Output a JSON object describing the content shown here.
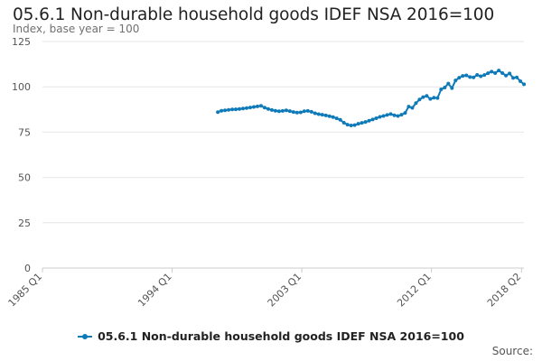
{
  "chart_data": {
    "type": "line",
    "title": "05.6.1 Non-durable household goods IDEF NSA 2016=100",
    "subtitle": "Index, base year = 100",
    "x_tick_labels": [
      "1985 Q1",
      "1994 Q1",
      "2003 Q1",
      "2012 Q1",
      "2018 Q2"
    ],
    "y_tick_labels": [
      "0",
      "25",
      "50",
      "75",
      "100",
      "125"
    ],
    "ylim": [
      0,
      125
    ],
    "x_start_year": 1985,
    "x_end_year": 2018.4167,
    "grid": true,
    "legend_position": "bottom",
    "series": [
      {
        "name": "05.6.1 Non-durable household goods IDEF NSA 2016=100",
        "color": "#0f7ab8",
        "points": [
          [
            1997.17,
            86.0
          ],
          [
            1997.42,
            86.8
          ],
          [
            1997.67,
            87.0
          ],
          [
            1997.92,
            87.3
          ],
          [
            1998.17,
            87.5
          ],
          [
            1998.42,
            87.6
          ],
          [
            1998.67,
            87.8
          ],
          [
            1998.92,
            88.0
          ],
          [
            1999.17,
            88.3
          ],
          [
            1999.42,
            88.6
          ],
          [
            1999.67,
            88.9
          ],
          [
            1999.92,
            89.2
          ],
          [
            2000.17,
            89.5
          ],
          [
            2000.42,
            88.5
          ],
          [
            2000.67,
            87.8
          ],
          [
            2000.92,
            87.2
          ],
          [
            2001.17,
            86.8
          ],
          [
            2001.42,
            86.5
          ],
          [
            2001.67,
            86.7
          ],
          [
            2001.92,
            87.0
          ],
          [
            2002.17,
            86.6
          ],
          [
            2002.42,
            86.1
          ],
          [
            2002.67,
            85.8
          ],
          [
            2002.92,
            85.9
          ],
          [
            2003.17,
            86.5
          ],
          [
            2003.42,
            86.7
          ],
          [
            2003.67,
            86.2
          ],
          [
            2003.92,
            85.4
          ],
          [
            2004.17,
            84.9
          ],
          [
            2004.42,
            84.6
          ],
          [
            2004.67,
            84.2
          ],
          [
            2004.92,
            83.8
          ],
          [
            2005.17,
            83.3
          ],
          [
            2005.42,
            82.6
          ],
          [
            2005.67,
            81.8
          ],
          [
            2005.92,
            80.2
          ],
          [
            2006.17,
            79.1
          ],
          [
            2006.42,
            78.7
          ],
          [
            2006.67,
            78.9
          ],
          [
            2006.92,
            79.6
          ],
          [
            2007.17,
            80.1
          ],
          [
            2007.42,
            80.6
          ],
          [
            2007.67,
            81.3
          ],
          [
            2007.92,
            82.0
          ],
          [
            2008.17,
            82.7
          ],
          [
            2008.42,
            83.4
          ],
          [
            2008.67,
            83.9
          ],
          [
            2008.92,
            84.5
          ],
          [
            2009.17,
            85.0
          ],
          [
            2009.42,
            84.3
          ],
          [
            2009.67,
            83.9
          ],
          [
            2009.92,
            84.6
          ],
          [
            2010.17,
            85.6
          ],
          [
            2010.42,
            89.1
          ],
          [
            2010.67,
            88.4
          ],
          [
            2010.92,
            91.0
          ],
          [
            2011.17,
            93.0
          ],
          [
            2011.42,
            94.3
          ],
          [
            2011.67,
            95.0
          ],
          [
            2011.92,
            93.3
          ],
          [
            2012.17,
            94.0
          ],
          [
            2012.42,
            93.8
          ],
          [
            2012.67,
            98.6
          ],
          [
            2012.92,
            99.6
          ],
          [
            2013.17,
            101.8
          ],
          [
            2013.42,
            99.3
          ],
          [
            2013.67,
            103.5
          ],
          [
            2013.92,
            105.0
          ],
          [
            2014.17,
            106.0
          ],
          [
            2014.42,
            106.3
          ],
          [
            2014.67,
            105.4
          ],
          [
            2014.92,
            105.2
          ],
          [
            2015.17,
            106.6
          ],
          [
            2015.42,
            105.8
          ],
          [
            2015.67,
            106.5
          ],
          [
            2015.92,
            107.5
          ],
          [
            2016.17,
            108.4
          ],
          [
            2016.42,
            107.6
          ],
          [
            2016.67,
            109.0
          ],
          [
            2016.92,
            107.6
          ],
          [
            2017.17,
            106.2
          ],
          [
            2017.42,
            107.4
          ],
          [
            2017.67,
            104.9
          ],
          [
            2017.92,
            105.2
          ],
          [
            2018.17,
            103.1
          ],
          [
            2018.42,
            101.4
          ]
        ]
      }
    ]
  },
  "legend": {
    "label": "05.6.1 Non-durable household goods IDEF NSA 2016=100"
  },
  "source_label": "Source:"
}
